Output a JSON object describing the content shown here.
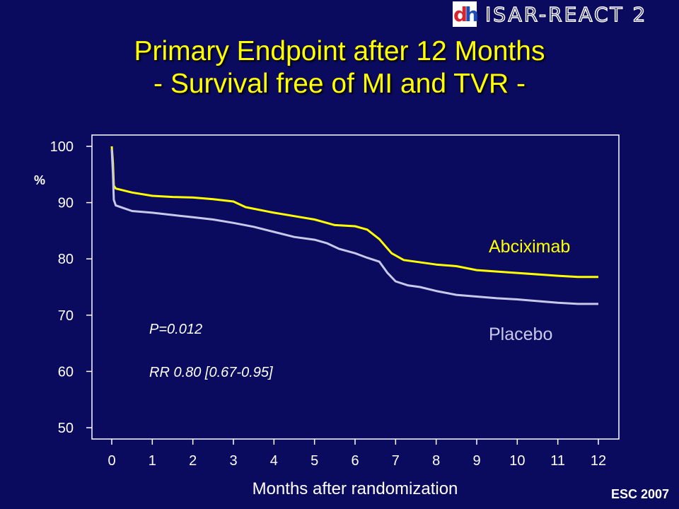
{
  "header": {
    "logo_mark_d": "d",
    "logo_mark_h": "h",
    "logo_text": "ISAR-REACT 2"
  },
  "title_line1": "Primary Endpoint after 12 Months",
  "title_line2": "- Survival free of MI and TVR -",
  "footer_tag": "ESC 2007",
  "colors": {
    "background": "#0a0a5e",
    "title": "#ffff00",
    "abciximab": "#ffff00",
    "placebo": "#c8c8e8"
  },
  "chart_data": {
    "type": "line",
    "xlabel": "Months after randomization",
    "ylabel": "%",
    "xlim": [
      0,
      12
    ],
    "ylim": [
      48,
      102
    ],
    "x_ticks": [
      "0",
      "1",
      "2",
      "3",
      "4",
      "5",
      "6",
      "7",
      "8",
      "9",
      "10",
      "11",
      "12"
    ],
    "y_ticks": [
      "100",
      "90",
      "80",
      "70",
      "60",
      "50"
    ],
    "grid": false,
    "series": [
      {
        "name": "Abciximab",
        "points": [
          [
            0,
            100
          ],
          [
            0.03,
            97
          ],
          [
            0.05,
            93
          ],
          [
            0.1,
            92.5
          ],
          [
            0.5,
            91.8
          ],
          [
            1,
            91.2
          ],
          [
            1.5,
            91
          ],
          [
            2,
            90.9
          ],
          [
            2.5,
            90.6
          ],
          [
            3,
            90.2
          ],
          [
            3.3,
            89.2
          ],
          [
            4,
            88.2
          ],
          [
            4.5,
            87.6
          ],
          [
            5,
            87
          ],
          [
            5.5,
            86
          ],
          [
            6,
            85.8
          ],
          [
            6.3,
            85.2
          ],
          [
            6.6,
            83.5
          ],
          [
            6.9,
            81
          ],
          [
            7.2,
            79.8
          ],
          [
            7.5,
            79.5
          ],
          [
            8,
            79
          ],
          [
            8.5,
            78.7
          ],
          [
            9,
            78
          ],
          [
            10,
            77.5
          ],
          [
            11,
            77
          ],
          [
            11.5,
            76.8
          ],
          [
            12,
            76.8
          ]
        ]
      },
      {
        "name": "Placebo",
        "points": [
          [
            0,
            99.5
          ],
          [
            0.03,
            95
          ],
          [
            0.05,
            90.5
          ],
          [
            0.1,
            89.5
          ],
          [
            0.3,
            89
          ],
          [
            0.5,
            88.5
          ],
          [
            1,
            88.2
          ],
          [
            1.5,
            87.8
          ],
          [
            2,
            87.4
          ],
          [
            2.5,
            87
          ],
          [
            3,
            86.4
          ],
          [
            3.5,
            85.7
          ],
          [
            4,
            84.8
          ],
          [
            4.5,
            83.9
          ],
          [
            5,
            83.4
          ],
          [
            5.3,
            82.8
          ],
          [
            5.6,
            81.8
          ],
          [
            6,
            81
          ],
          [
            6.3,
            80.2
          ],
          [
            6.6,
            79.5
          ],
          [
            6.8,
            77.5
          ],
          [
            7,
            76
          ],
          [
            7.3,
            75.3
          ],
          [
            7.6,
            75
          ],
          [
            8,
            74.3
          ],
          [
            8.5,
            73.6
          ],
          [
            9,
            73.3
          ],
          [
            9.5,
            73
          ],
          [
            10,
            72.8
          ],
          [
            10.5,
            72.5
          ],
          [
            11,
            72.2
          ],
          [
            11.5,
            72
          ],
          [
            12,
            72
          ]
        ]
      }
    ],
    "annotations": [
      {
        "text": "P=0.012"
      },
      {
        "text": "RR 0.80 [0.67-0.95]"
      }
    ]
  }
}
